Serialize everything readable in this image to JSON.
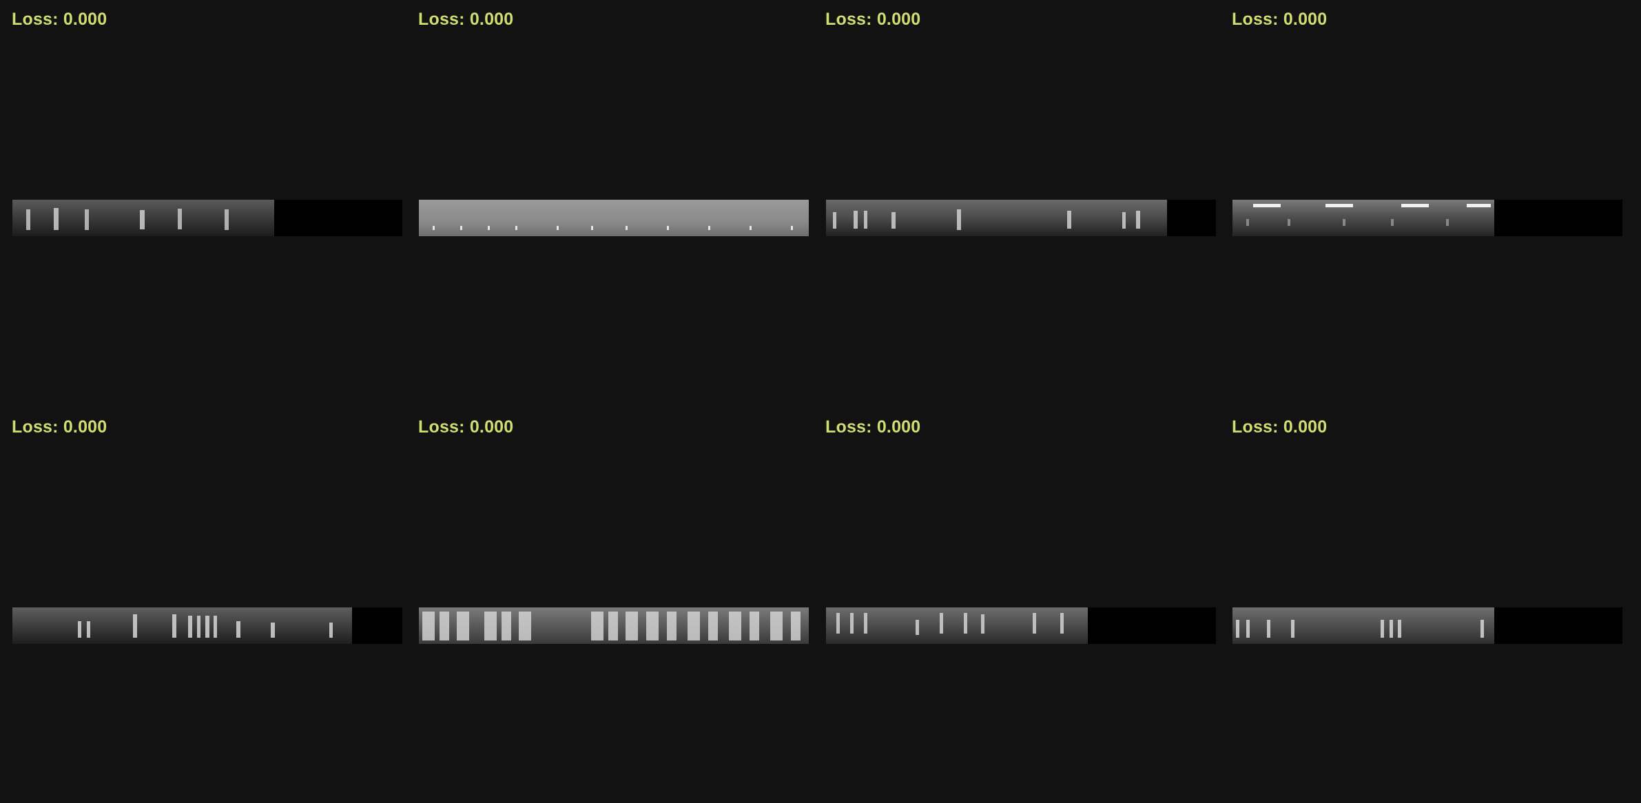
{
  "panels": [
    {
      "loss_text": "Loss: 0.000"
    },
    {
      "loss_text": "Loss: 0.000"
    },
    {
      "loss_text": "Loss: 0.000"
    },
    {
      "loss_text": "Loss: 0.000"
    },
    {
      "loss_text": "Loss: 0.000"
    },
    {
      "loss_text": "Loss: 0.000"
    },
    {
      "loss_text": "Loss: 0.000"
    },
    {
      "loss_text": "Loss: 0.000"
    }
  ],
  "colors": {
    "background": "#121212",
    "label": "#d2dd6f",
    "padding": "#000000"
  }
}
